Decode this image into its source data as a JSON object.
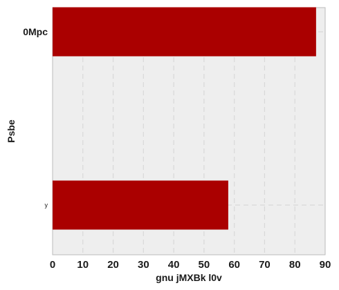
{
  "chart_data": {
    "type": "bar",
    "orientation": "horizontal",
    "categories": [
      "0Mpc",
      "y"
    ],
    "values": [
      87,
      58
    ],
    "xlabel": "gnu jMXBk l0v",
    "ylabel": "Psbe",
    "xlim": [
      0,
      90
    ],
    "xticks": [
      "0",
      "10",
      "20",
      "30",
      "40",
      "50",
      "60",
      "70",
      "80",
      "90"
    ],
    "grid": true,
    "bar_color": "#aa0000",
    "background_color": "#eeeeee"
  }
}
